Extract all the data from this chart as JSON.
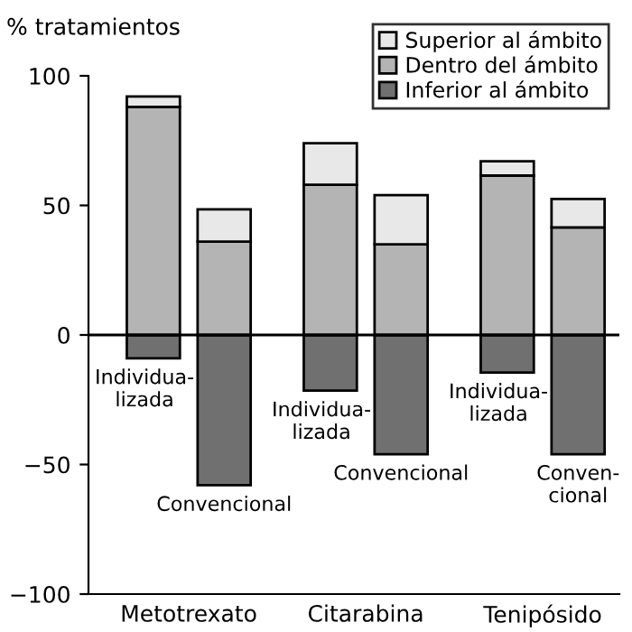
{
  "chart_data": {
    "type": "bar",
    "stacked": true,
    "ylabel": "% tratamientos",
    "categories": [
      "Individua-\nlizada",
      "Convencional",
      "Individua-\nlizada",
      "Convencional",
      "Individua-\nlizada",
      "Conven-\ncional"
    ],
    "series": [
      {
        "name": "Inferior al ámbito",
        "color": "#707070",
        "values": [
          -9,
          -58,
          -21.5,
          -46,
          -14.5,
          -46
        ]
      },
      {
        "name": "Dentro del ámbito",
        "color": "#b4b4b4",
        "values": [
          88,
          36,
          58,
          35,
          61.5,
          41.5
        ]
      },
      {
        "name": "Superior al ámbito",
        "color": "#e8e8e8",
        "values": [
          4,
          12.5,
          16,
          19,
          5.5,
          11
        ]
      }
    ],
    "annotations": [
      "Metotrexato",
      "Citarabina",
      "Tenipósido"
    ],
    "ylim": [
      -100,
      100
    ],
    "yticks": [
      {
        "value": -100,
        "label": "−100"
      },
      {
        "value": -50,
        "label": "−50"
      },
      0,
      50,
      100
    ],
    "ref_lines": [
      {
        "axis": "y",
        "value": 0
      }
    ],
    "legend": "top right",
    "grid": false
  }
}
